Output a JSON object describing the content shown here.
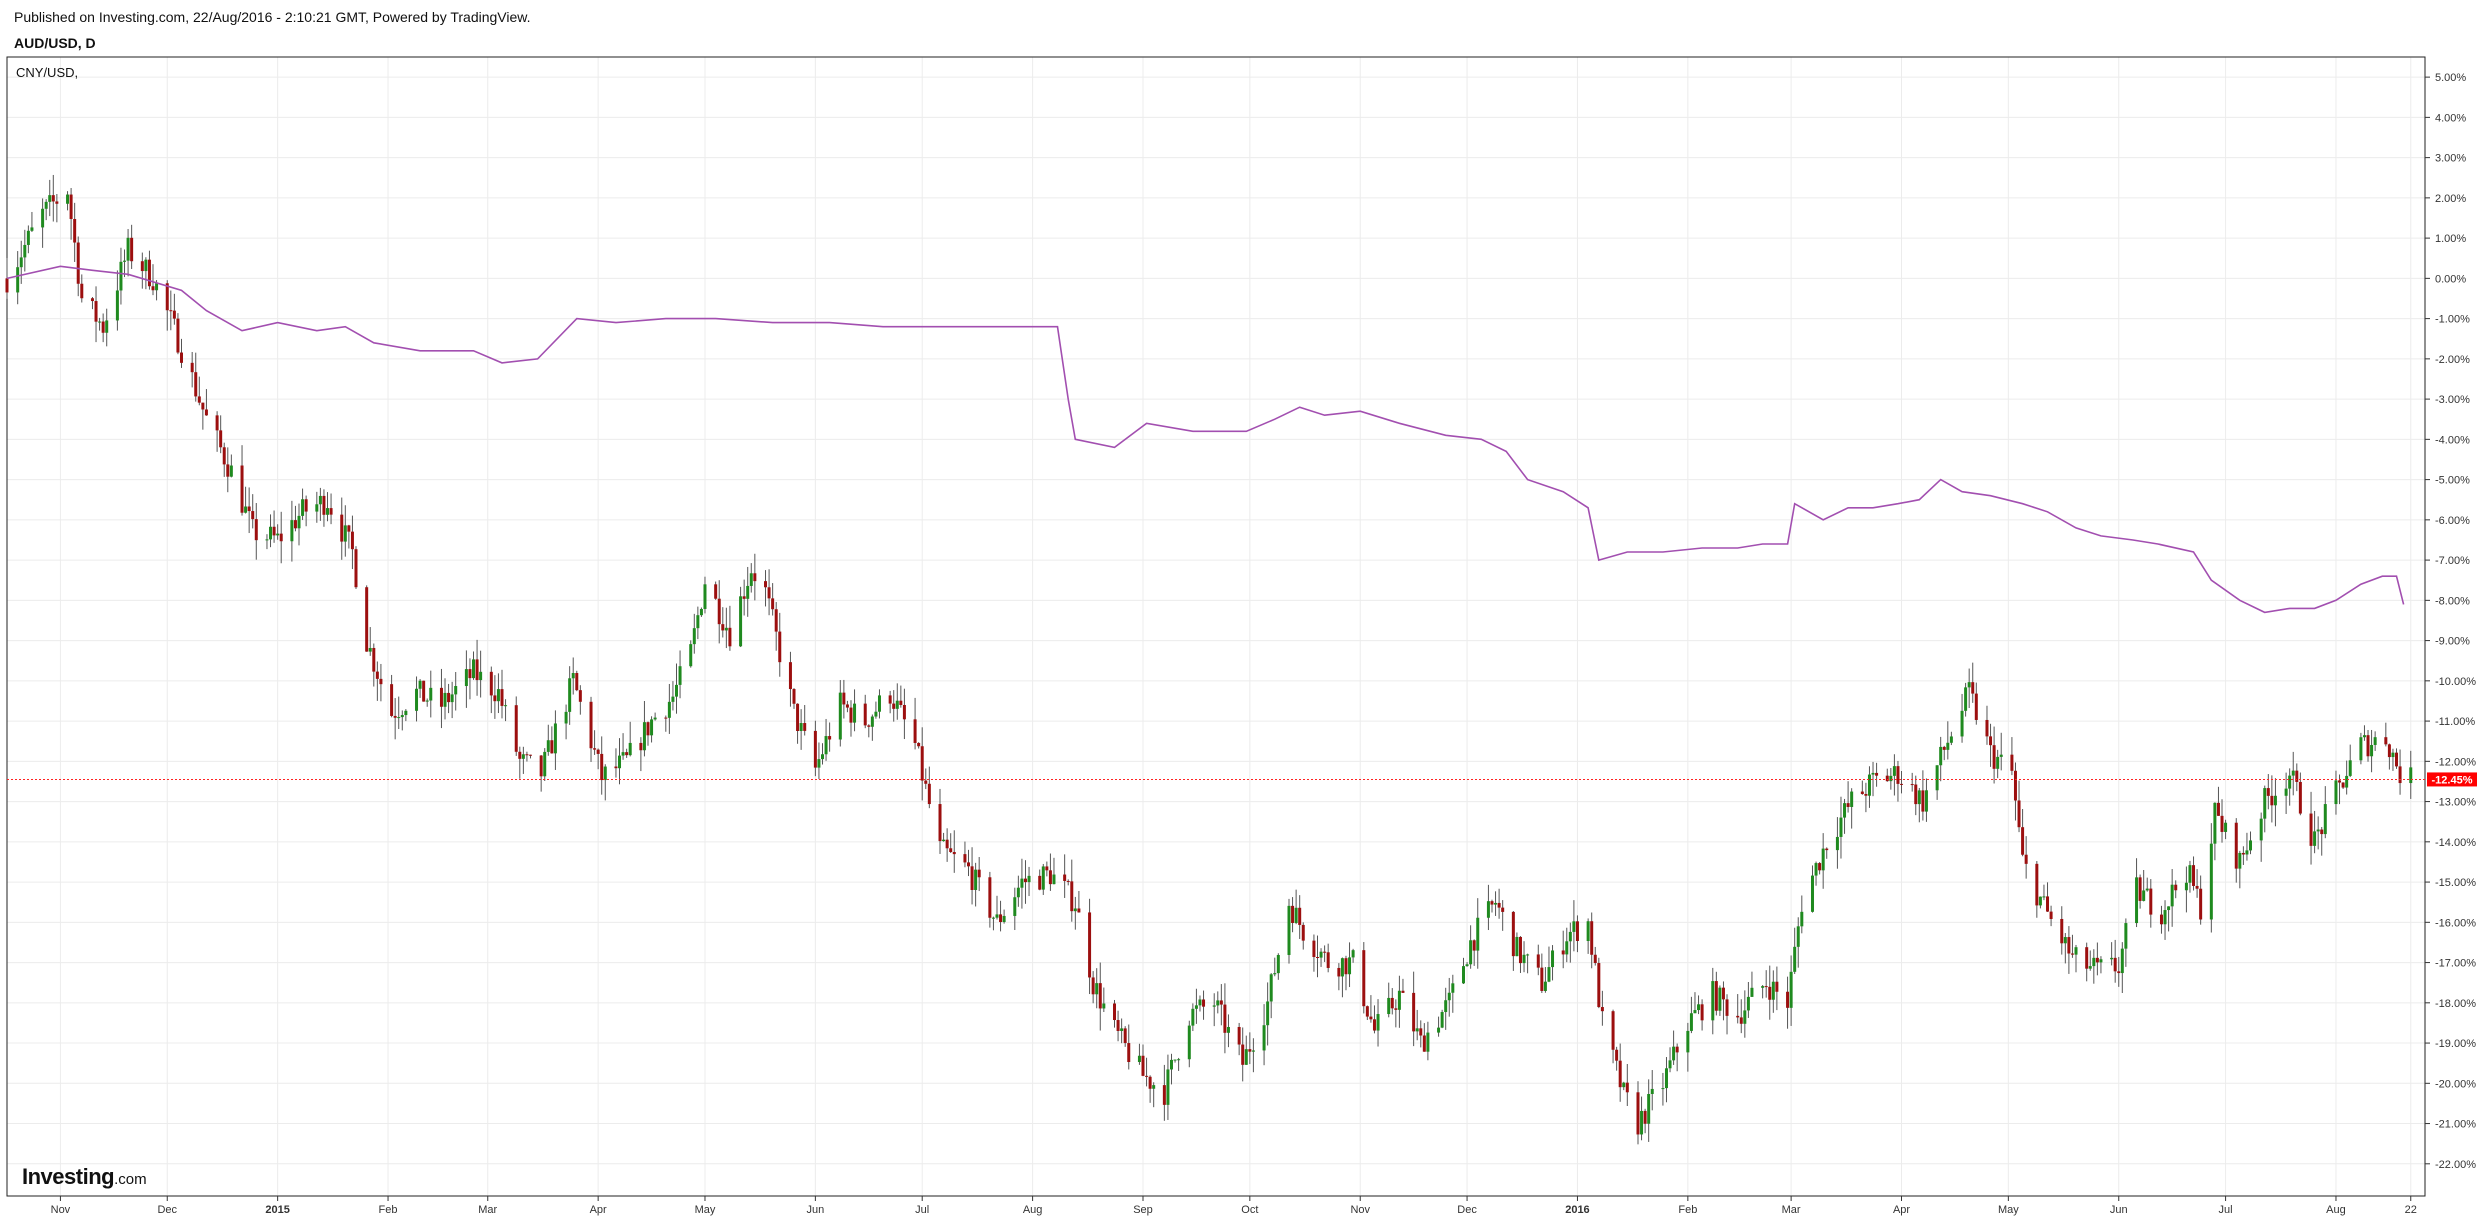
{
  "header": {
    "published_line": "Published on Investing.com, 22/Aug/2016 - 2:10:21 GMT, Powered by TradingView.",
    "symbol_line": "AUD/USD, D"
  },
  "legend": {
    "compare_label": "CNY/USD,"
  },
  "brand": {
    "name": "Investing",
    "tld": ".com"
  },
  "colors": {
    "up_candle": "#1f8a1f",
    "down_candle": "#9c0f0f",
    "wick": "#555555",
    "compare_line": "#a24fb0",
    "current_line": "#ff2222",
    "badge_bg": "#ff0000",
    "grid": "#ececec",
    "axis_text": "#333333"
  },
  "chart_data": {
    "type": "line",
    "title": "AUD/USD, D",
    "y_unit": "%",
    "ylim": [
      -22.8,
      5.5
    ],
    "y_ticks": [
      5,
      4,
      3,
      2,
      1,
      0,
      -1,
      -2,
      -3,
      -4,
      -5,
      -6,
      -7,
      -8,
      -9,
      -10,
      -11,
      -12,
      -13,
      -14,
      -15,
      -16,
      -17,
      -18,
      -19,
      -20,
      -21,
      -22
    ],
    "y_tick_labels": [
      "5.00%",
      "4.00%",
      "3.00%",
      "2.00%",
      "1.00%",
      "0.00%",
      "-1.00%",
      "-2.00%",
      "-3.00%",
      "-4.00%",
      "-5.00%",
      "-6.00%",
      "-7.00%",
      "-8.00%",
      "-9.00%",
      "-10.00%",
      "-11.00%",
      "-12.00%",
      "-13.00%",
      "-14.00%",
      "-15.00%",
      "-16.00%",
      "-17.00%",
      "-18.00%",
      "-19.00%",
      "-20.00%",
      "-21.00%",
      "-22.00%"
    ],
    "x_range": [
      "2014-10-17",
      "2016-08-26"
    ],
    "x_ticks": [
      {
        "date": "2014-11-01",
        "label": "Nov",
        "bold": false
      },
      {
        "date": "2014-12-01",
        "label": "Dec",
        "bold": false
      },
      {
        "date": "2015-01-01",
        "label": "2015",
        "bold": true
      },
      {
        "date": "2015-02-01",
        "label": "Feb",
        "bold": false
      },
      {
        "date": "2015-03-01",
        "label": "Mar",
        "bold": false
      },
      {
        "date": "2015-04-01",
        "label": "Apr",
        "bold": false
      },
      {
        "date": "2015-05-01",
        "label": "May",
        "bold": false
      },
      {
        "date": "2015-06-01",
        "label": "Jun",
        "bold": false
      },
      {
        "date": "2015-07-01",
        "label": "Jul",
        "bold": false
      },
      {
        "date": "2015-08-01",
        "label": "Aug",
        "bold": false
      },
      {
        "date": "2015-09-01",
        "label": "Sep",
        "bold": false
      },
      {
        "date": "2015-10-01",
        "label": "Oct",
        "bold": false
      },
      {
        "date": "2015-11-01",
        "label": "Nov",
        "bold": false
      },
      {
        "date": "2015-12-01",
        "label": "Dec",
        "bold": false
      },
      {
        "date": "2016-01-01",
        "label": "2016",
        "bold": true
      },
      {
        "date": "2016-02-01",
        "label": "Feb",
        "bold": false
      },
      {
        "date": "2016-03-01",
        "label": "Mar",
        "bold": false
      },
      {
        "date": "2016-04-01",
        "label": "Apr",
        "bold": false
      },
      {
        "date": "2016-05-01",
        "label": "May",
        "bold": false
      },
      {
        "date": "2016-06-01",
        "label": "Jun",
        "bold": false
      },
      {
        "date": "2016-07-01",
        "label": "Jul",
        "bold": false
      },
      {
        "date": "2016-08-01",
        "label": "Aug",
        "bold": false
      },
      {
        "date": "2016-08-22",
        "label": "22",
        "bold": false
      }
    ],
    "current_value": -12.45,
    "current_label": "-12.45%",
    "series": [
      {
        "name": "AUD/USD",
        "style": "candlestick",
        "points": [
          [
            "2014-10-17",
            0.0
          ],
          [
            "2014-10-27",
            1.6
          ],
          [
            "2014-11-03",
            2.2
          ],
          [
            "2014-11-07",
            -0.5
          ],
          [
            "2014-11-13",
            -1.2
          ],
          [
            "2014-11-20",
            0.7
          ],
          [
            "2014-11-27",
            0.0
          ],
          [
            "2014-12-04",
            -1.5
          ],
          [
            "2014-12-12",
            -3.5
          ],
          [
            "2014-12-19",
            -4.8
          ],
          [
            "2014-12-25",
            -6.3
          ],
          [
            "2015-01-01",
            -6.5
          ],
          [
            "2015-01-08",
            -5.8
          ],
          [
            "2015-01-15",
            -5.5
          ],
          [
            "2015-01-22",
            -6.8
          ],
          [
            "2015-01-26",
            -9.0
          ],
          [
            "2015-02-02",
            -10.8
          ],
          [
            "2015-02-09",
            -10.3
          ],
          [
            "2015-02-16",
            -10.6
          ],
          [
            "2015-02-25",
            -9.8
          ],
          [
            "2015-03-04",
            -10.3
          ],
          [
            "2015-03-10",
            -12.0
          ],
          [
            "2015-03-16",
            -12.3
          ],
          [
            "2015-03-25",
            -10.0
          ],
          [
            "2015-04-02",
            -12.4
          ],
          [
            "2015-04-09",
            -12.0
          ],
          [
            "2015-04-16",
            -11.0
          ],
          [
            "2015-04-22",
            -10.4
          ],
          [
            "2015-04-27",
            -9.3
          ],
          [
            "2015-05-01",
            -7.5
          ],
          [
            "2015-05-08",
            -8.8
          ],
          [
            "2015-05-14",
            -7.2
          ],
          [
            "2015-05-18",
            -7.8
          ],
          [
            "2015-05-26",
            -10.8
          ],
          [
            "2015-06-01",
            -12.2
          ],
          [
            "2015-06-08",
            -10.6
          ],
          [
            "2015-06-15",
            -11.0
          ],
          [
            "2015-06-22",
            -10.3
          ],
          [
            "2015-06-29",
            -11.6
          ],
          [
            "2015-07-06",
            -14.2
          ],
          [
            "2015-07-14",
            -14.7
          ],
          [
            "2015-07-22",
            -16.0
          ],
          [
            "2015-07-29",
            -15.0
          ],
          [
            "2015-08-06",
            -14.8
          ],
          [
            "2015-08-13",
            -15.5
          ],
          [
            "2015-08-18",
            -17.5
          ],
          [
            "2015-08-24",
            -18.7
          ],
          [
            "2015-09-01",
            -19.8
          ],
          [
            "2015-09-07",
            -20.2
          ],
          [
            "2015-09-14",
            -18.3
          ],
          [
            "2015-09-21",
            -18.0
          ],
          [
            "2015-09-29",
            -19.5
          ],
          [
            "2015-10-06",
            -18.0
          ],
          [
            "2015-10-12",
            -15.5
          ],
          [
            "2015-10-16",
            -16.2
          ],
          [
            "2015-10-23",
            -17.0
          ],
          [
            "2015-10-30",
            -17.0
          ],
          [
            "2015-11-05",
            -18.7
          ],
          [
            "2015-11-12",
            -17.8
          ],
          [
            "2015-11-18",
            -19.0
          ],
          [
            "2015-11-26",
            -18.0
          ],
          [
            "2015-12-02",
            -16.5
          ],
          [
            "2015-12-09",
            -15.5
          ],
          [
            "2015-12-15",
            -16.7
          ],
          [
            "2015-12-22",
            -17.5
          ],
          [
            "2015-12-29",
            -16.3
          ],
          [
            "2016-01-04",
            -16.0
          ],
          [
            "2016-01-08",
            -18.5
          ],
          [
            "2016-01-14",
            -20.3
          ],
          [
            "2016-01-18",
            -21.0
          ],
          [
            "2016-01-25",
            -20.0
          ],
          [
            "2016-02-01",
            -18.5
          ],
          [
            "2016-02-08",
            -17.8
          ],
          [
            "2016-02-15",
            -18.3
          ],
          [
            "2016-02-23",
            -17.5
          ],
          [
            "2016-02-29",
            -18.0
          ],
          [
            "2016-03-04",
            -15.5
          ],
          [
            "2016-03-11",
            -14.0
          ],
          [
            "2016-03-18",
            -13.0
          ],
          [
            "2016-03-24",
            -12.5
          ],
          [
            "2016-03-31",
            -12.3
          ],
          [
            "2016-04-07",
            -13.0
          ],
          [
            "2016-04-14",
            -11.5
          ],
          [
            "2016-04-20",
            -10.3
          ],
          [
            "2016-04-26",
            -11.8
          ],
          [
            "2016-05-02",
            -12.3
          ],
          [
            "2016-05-05",
            -14.5
          ],
          [
            "2016-05-12",
            -15.8
          ],
          [
            "2016-05-19",
            -16.9
          ],
          [
            "2016-05-26",
            -17.2
          ],
          [
            "2016-06-01",
            -17.1
          ],
          [
            "2016-06-06",
            -15.2
          ],
          [
            "2016-06-13",
            -15.7
          ],
          [
            "2016-06-20",
            -14.7
          ],
          [
            "2016-06-24",
            -15.6
          ],
          [
            "2016-06-28",
            -13.3
          ],
          [
            "2016-07-05",
            -14.5
          ],
          [
            "2016-07-12",
            -13.0
          ],
          [
            "2016-07-19",
            -12.3
          ],
          [
            "2016-07-26",
            -14.0
          ],
          [
            "2016-08-01",
            -12.8
          ],
          [
            "2016-08-08",
            -11.6
          ],
          [
            "2016-08-15",
            -11.4
          ],
          [
            "2016-08-19",
            -12.3
          ],
          [
            "2016-08-22",
            -12.45
          ]
        ]
      },
      {
        "name": "CNY/USD",
        "style": "line",
        "points": [
          [
            "2014-10-17",
            0.0
          ],
          [
            "2014-11-01",
            0.3
          ],
          [
            "2014-11-10",
            0.2
          ],
          [
            "2014-11-20",
            0.1
          ],
          [
            "2014-12-05",
            -0.3
          ],
          [
            "2014-12-12",
            -0.8
          ],
          [
            "2014-12-22",
            -1.3
          ],
          [
            "2015-01-01",
            -1.1
          ],
          [
            "2015-01-12",
            -1.3
          ],
          [
            "2015-01-20",
            -1.2
          ],
          [
            "2015-01-28",
            -1.6
          ],
          [
            "2015-02-10",
            -1.8
          ],
          [
            "2015-02-25",
            -1.8
          ],
          [
            "2015-03-05",
            -2.1
          ],
          [
            "2015-03-15",
            -2.0
          ],
          [
            "2015-03-26",
            -1.0
          ],
          [
            "2015-04-06",
            -1.1
          ],
          [
            "2015-04-20",
            -1.0
          ],
          [
            "2015-05-04",
            -1.0
          ],
          [
            "2015-05-20",
            -1.1
          ],
          [
            "2015-06-05",
            -1.1
          ],
          [
            "2015-06-20",
            -1.2
          ],
          [
            "2015-07-05",
            -1.2
          ],
          [
            "2015-07-25",
            -1.2
          ],
          [
            "2015-08-08",
            -1.2
          ],
          [
            "2015-08-11",
            -3.0
          ],
          [
            "2015-08-13",
            -4.0
          ],
          [
            "2015-08-24",
            -4.2
          ],
          [
            "2015-09-02",
            -3.6
          ],
          [
            "2015-09-15",
            -3.8
          ],
          [
            "2015-09-30",
            -3.8
          ],
          [
            "2015-10-08",
            -3.5
          ],
          [
            "2015-10-15",
            -3.2
          ],
          [
            "2015-10-22",
            -3.4
          ],
          [
            "2015-11-01",
            -3.3
          ],
          [
            "2015-11-12",
            -3.6
          ],
          [
            "2015-11-25",
            -3.9
          ],
          [
            "2015-12-05",
            -4.0
          ],
          [
            "2015-12-12",
            -4.3
          ],
          [
            "2015-12-18",
            -5.0
          ],
          [
            "2015-12-28",
            -5.3
          ],
          [
            "2016-01-04",
            -5.7
          ],
          [
            "2016-01-07",
            -7.0
          ],
          [
            "2016-01-15",
            -6.8
          ],
          [
            "2016-01-25",
            -6.8
          ],
          [
            "2016-02-05",
            -6.7
          ],
          [
            "2016-02-15",
            -6.7
          ],
          [
            "2016-02-22",
            -6.6
          ],
          [
            "2016-02-29",
            -6.6
          ],
          [
            "2016-03-02",
            -5.6
          ],
          [
            "2016-03-10",
            -6.0
          ],
          [
            "2016-03-17",
            -5.7
          ],
          [
            "2016-03-24",
            -5.7
          ],
          [
            "2016-03-31",
            -5.6
          ],
          [
            "2016-04-06",
            -5.5
          ],
          [
            "2016-04-12",
            -5.0
          ],
          [
            "2016-04-18",
            -5.3
          ],
          [
            "2016-04-26",
            -5.4
          ],
          [
            "2016-05-05",
            -5.6
          ],
          [
            "2016-05-12",
            -5.8
          ],
          [
            "2016-05-20",
            -6.2
          ],
          [
            "2016-05-27",
            -6.4
          ],
          [
            "2016-06-05",
            -6.5
          ],
          [
            "2016-06-12",
            -6.6
          ],
          [
            "2016-06-22",
            -6.8
          ],
          [
            "2016-06-27",
            -7.5
          ],
          [
            "2016-07-05",
            -8.0
          ],
          [
            "2016-07-12",
            -8.3
          ],
          [
            "2016-07-19",
            -8.2
          ],
          [
            "2016-07-26",
            -8.2
          ],
          [
            "2016-08-01",
            -8.0
          ],
          [
            "2016-08-08",
            -7.6
          ],
          [
            "2016-08-14",
            -7.4
          ],
          [
            "2016-08-18",
            -7.4
          ],
          [
            "2016-08-20",
            -8.1
          ]
        ]
      }
    ]
  }
}
